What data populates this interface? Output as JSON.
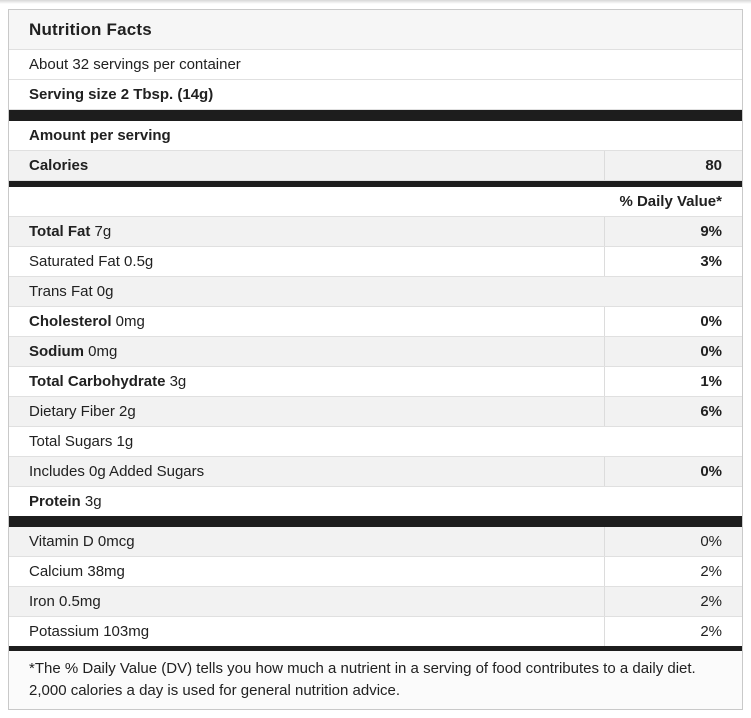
{
  "label": {
    "title": "Nutrition Facts",
    "servings_per_container": "About 32 servings per container",
    "serving_size": "Serving size 2 Tbsp. (14g)",
    "amount_per_serving": "Amount per serving",
    "calories_label": "Calories",
    "calories_value": "80",
    "daily_value_header": "% Daily Value*",
    "nutrients": [
      {
        "name": "Total Fat",
        "amount": "7g",
        "bold": true,
        "dv": "9%"
      },
      {
        "name": "Saturated Fat",
        "amount": "0.5g",
        "bold": false,
        "dv": "3%"
      },
      {
        "name": "Trans Fat",
        "amount": "0g",
        "bold": false,
        "dv": null
      },
      {
        "name": "Cholesterol",
        "amount": "0mg",
        "bold": true,
        "dv": "0%"
      },
      {
        "name": "Sodium",
        "amount": "0mg",
        "bold": true,
        "dv": "0%"
      },
      {
        "name": "Total Carbohydrate",
        "amount": "3g",
        "bold": true,
        "dv": "1%"
      },
      {
        "name": "Dietary Fiber",
        "amount": "2g",
        "bold": false,
        "dv": "6%"
      },
      {
        "name": "Total Sugars",
        "amount": "1g",
        "bold": false,
        "dv": null
      },
      {
        "name": "Includes 0g Added Sugars",
        "amount": "",
        "bold": false,
        "dv": "0%"
      },
      {
        "name": "Protein",
        "amount": "3g",
        "bold": true,
        "dv": null
      }
    ],
    "vitamins": [
      {
        "name": "Vitamin D",
        "amount": "0mcg",
        "bold": false,
        "dv": "0%"
      },
      {
        "name": "Calcium",
        "amount": "38mg",
        "bold": false,
        "dv": "2%"
      },
      {
        "name": "Iron",
        "amount": "0.5mg",
        "bold": false,
        "dv": "2%"
      },
      {
        "name": "Potassium",
        "amount": "103mg",
        "bold": false,
        "dv": "2%"
      }
    ],
    "footnote": "*The % Daily Value (DV) tells you how much a nutrient in a serving of food contributes to a daily diet. 2,000 calories a day is used for general nutrition advice.",
    "colors": {
      "divider_bar": "#1d1d1d",
      "stripe": "#f2f2f2"
    }
  }
}
